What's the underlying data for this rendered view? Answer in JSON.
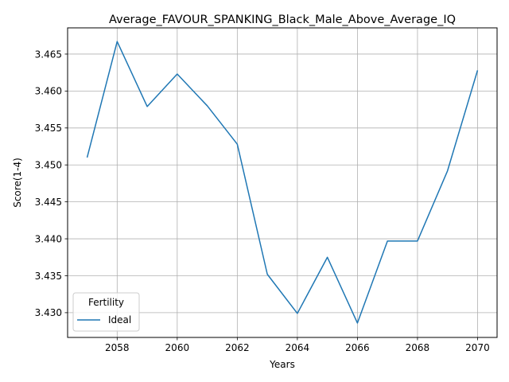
{
  "chart_data": {
    "type": "line",
    "title": "Average_FAVOUR_SPANKING_Black_Male_Above_Average_IQ",
    "xlabel": "Years",
    "ylabel": "Score(1-4)",
    "xlim": [
      2056.35,
      2070.65
    ],
    "ylim": [
      3.42665,
      3.46855
    ],
    "x_ticks": [
      2058,
      2060,
      2062,
      2064,
      2066,
      2068,
      2070
    ],
    "y_ticks": [
      3.43,
      3.435,
      3.44,
      3.445,
      3.45,
      3.455,
      3.46,
      3.465
    ],
    "y_tick_labels": [
      "3.430",
      "3.435",
      "3.440",
      "3.445",
      "3.450",
      "3.455",
      "3.460",
      "3.465"
    ],
    "grid": true,
    "legend": {
      "title": "Fertility",
      "placement": "lower-left"
    },
    "series": [
      {
        "name": "Ideal",
        "color": "#1f77b4",
        "x": [
          2057,
          2058,
          2059,
          2060,
          2061,
          2062,
          2063,
          2064,
          2065,
          2066,
          2067,
          2068,
          2069,
          2070
        ],
        "y": [
          3.451,
          3.4667,
          3.4579,
          3.4623,
          3.458,
          3.4528,
          3.4352,
          3.4299,
          3.4375,
          3.4286,
          3.4397,
          3.4397,
          3.4492,
          3.4628
        ]
      }
    ]
  }
}
